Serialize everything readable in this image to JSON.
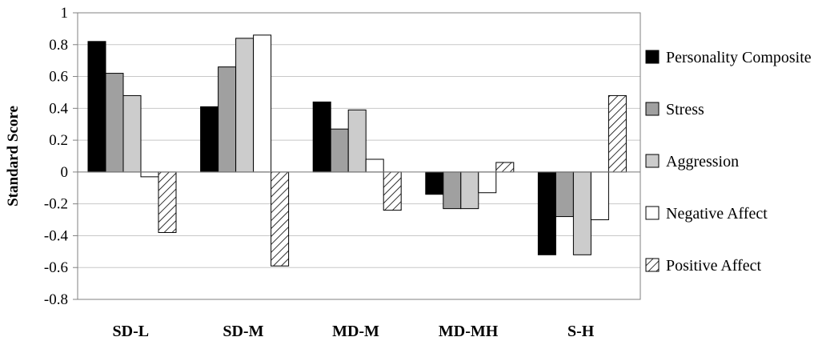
{
  "chart_data": {
    "type": "bar",
    "title": "",
    "xlabel": "",
    "ylabel": "Standard Score",
    "ylim": [
      -0.8,
      1
    ],
    "yticks": [
      1,
      0.8,
      0.6,
      0.4,
      0.2,
      0,
      -0.2,
      -0.4,
      -0.6,
      -0.8
    ],
    "ytick_labels": [
      "1",
      "0.8",
      "0.6",
      "0.4",
      "0.2",
      "0",
      "-0.2",
      "-0.4",
      "-0.6",
      "-0.8"
    ],
    "grid": true,
    "legend_position": "right",
    "categories": [
      "SD-L",
      "SD-M",
      "MD-M",
      "MD-MH",
      "S-H"
    ],
    "series": [
      {
        "name": "Personality Composite",
        "color": "#000000",
        "pattern": "solid",
        "values": [
          0.82,
          0.41,
          0.44,
          -0.14,
          -0.52
        ]
      },
      {
        "name": "Stress",
        "color": "#a0a0a0",
        "pattern": "solid",
        "values": [
          0.62,
          0.66,
          0.27,
          -0.23,
          -0.28
        ]
      },
      {
        "name": "Aggression",
        "color": "#cccccc",
        "pattern": "solid",
        "values": [
          0.48,
          0.84,
          0.39,
          -0.23,
          -0.52
        ]
      },
      {
        "name": "Negative Affect",
        "color": "#ffffff",
        "pattern": "solid",
        "values": [
          -0.03,
          0.86,
          0.08,
          -0.13,
          -0.3
        ]
      },
      {
        "name": "Positive Affect",
        "color": "#ffffff",
        "pattern": "hatch",
        "values": [
          -0.38,
          -0.59,
          -0.24,
          0.06,
          0.48
        ]
      }
    ]
  }
}
